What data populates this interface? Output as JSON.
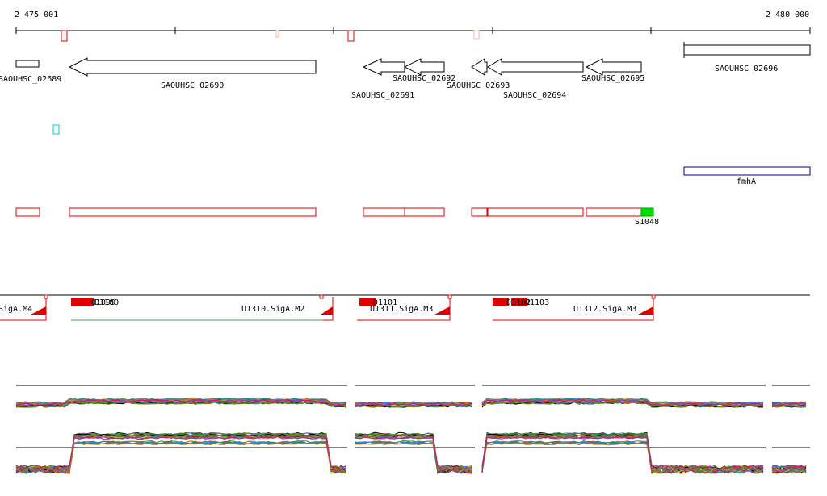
{
  "ruler": {
    "start_label": "2 475 001",
    "end_label": "2 480 000"
  },
  "genes": [
    {
      "label": "SAOUHSC_02689",
      "dir": "plus"
    },
    {
      "label": "SAOUHSC_02690",
      "dir": "minus"
    },
    {
      "label": "SAOUHSC_02691",
      "dir": "minus"
    },
    {
      "label": "SAOUHSC_02692",
      "dir": "minus"
    },
    {
      "label": "SAOUHSC_02693",
      "dir": "minus"
    },
    {
      "label": "SAOUHSC_02694",
      "dir": "minus"
    },
    {
      "label": "SAOUHSC_02695",
      "dir": "minus"
    },
    {
      "label": "SAOUHSC_02696",
      "dir": "plus"
    }
  ],
  "feature_fmhA": "fmhA",
  "segment_label": "S1048",
  "transcription_units": [
    {
      "label": "SigA.M4"
    },
    {
      "label": "U1310.SigA.M2"
    },
    {
      "label": "U1311.SigA.M3"
    },
    {
      "label": "U1312.SigA.M3"
    }
  ],
  "promoter_labels": [
    "D1099",
    "D1100",
    "D1101",
    "D1102",
    "D1103"
  ],
  "colors": {
    "axis": "#000000",
    "annotation_red": "#e00000",
    "segment_green": "#00e000",
    "cyan_marker": "#00cccc",
    "fmhA_box": "#000080",
    "tu_line_green": "#3aa84a"
  },
  "expression_tracks": {
    "series_count": 30,
    "series_colors": [
      "#000000",
      "#7a4a2a",
      "#2e8b57",
      "#b22222",
      "#4682b4",
      "#9acd32",
      "#d2691e",
      "#6a5acd",
      "#808000",
      "#c71585",
      "#008b8b",
      "#ff8c00",
      "#556b2f",
      "#8b0000",
      "#1e90ff",
      "#a0522d",
      "#228b22",
      "#dc143c",
      "#696969",
      "#bdb76b"
    ]
  }
}
